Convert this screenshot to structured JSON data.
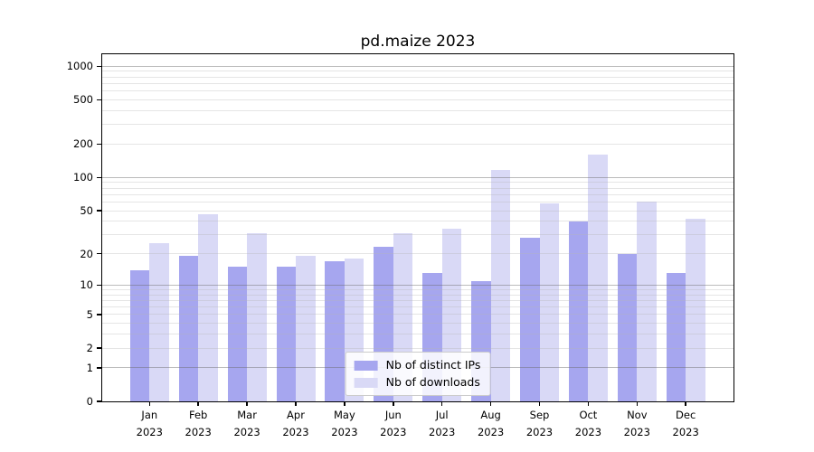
{
  "title": "pd.maize 2023",
  "chart_data": {
    "type": "bar",
    "title": "pd.maize 2023",
    "categories": [
      "Jan",
      "Feb",
      "Mar",
      "Apr",
      "May",
      "Jun",
      "Jul",
      "Aug",
      "Sep",
      "Oct",
      "Nov",
      "Dec"
    ],
    "category_year": "2023",
    "series": [
      {
        "name": "Nb of distinct IPs",
        "color": "#a6a6ef",
        "values": [
          14,
          19,
          15,
          15,
          17,
          23,
          13,
          11,
          28,
          40,
          20,
          13
        ]
      },
      {
        "name": "Nb of downloads",
        "color": "#d9d9f6",
        "values": [
          25,
          46,
          31,
          19,
          18,
          31,
          34,
          117,
          58,
          160,
          61,
          42
        ]
      }
    ],
    "yscale": "log1p",
    "ylim": [
      0,
      1281
    ],
    "yticks": [
      0,
      1,
      2,
      5,
      10,
      20,
      50,
      100,
      200,
      500,
      1000
    ],
    "grid": "on",
    "grid_major_values": [
      1,
      10,
      100,
      1000
    ],
    "legend_position": "lower center",
    "xlabel": "",
    "ylabel": ""
  },
  "colors": {
    "background": "#ffffff",
    "spine": "#000000",
    "bar_distinct_ips": "#a6a6ef",
    "bar_downloads": "#d9d9f6"
  }
}
